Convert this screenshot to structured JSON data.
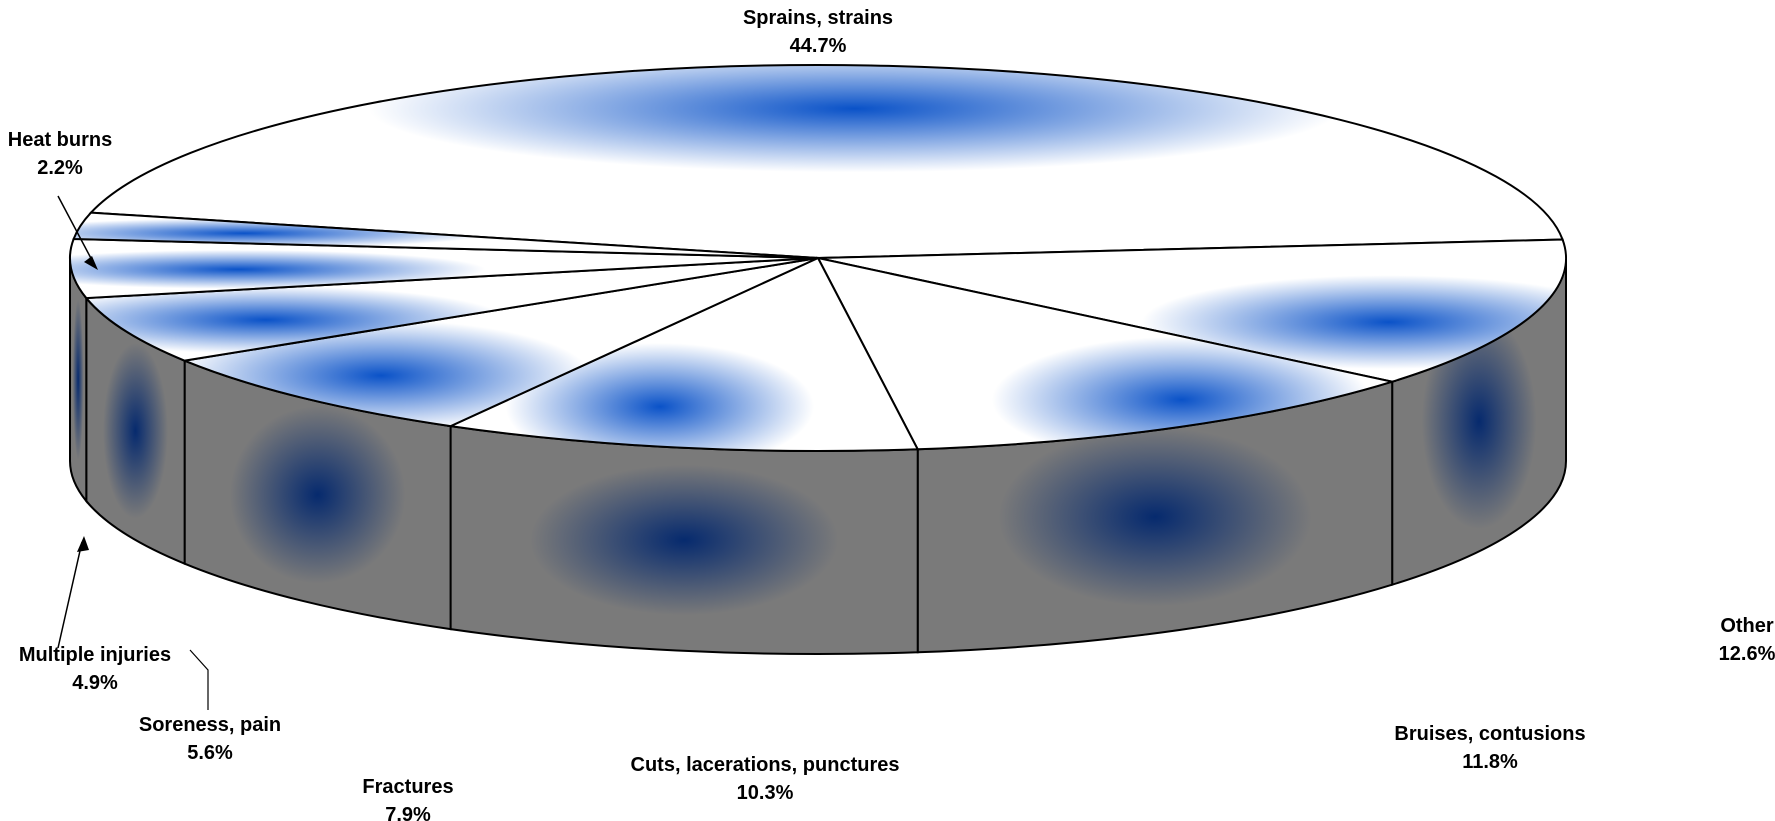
{
  "chart_data": {
    "type": "pie",
    "style": "3d-exploded-none",
    "title": "",
    "slices": [
      {
        "label": "Sprains, strains",
        "value": 44.7,
        "value_label": "44.7%"
      },
      {
        "label": "Other",
        "value": 12.6,
        "value_label": "12.6%"
      },
      {
        "label": "Bruises, contusions",
        "value": 11.8,
        "value_label": "11.8%"
      },
      {
        "label": "Cuts, lacerations, punctures",
        "value": 10.3,
        "value_label": "10.3%"
      },
      {
        "label": "Fractures",
        "value": 7.9,
        "value_label": "7.9%"
      },
      {
        "label": "Soreness, pain",
        "value": 5.6,
        "value_label": "5.6%"
      },
      {
        "label": "Multiple injuries",
        "value": 4.9,
        "value_label": "4.9%"
      },
      {
        "label": "Heat burns",
        "value": 2.2,
        "value_label": "2.2%"
      }
    ],
    "colors": {
      "top_center": "#0a52c8",
      "top_edge": "#ffffff",
      "side_center": "#062a6e",
      "side_edge": "#7a7a7a",
      "outline": "#000000"
    }
  }
}
